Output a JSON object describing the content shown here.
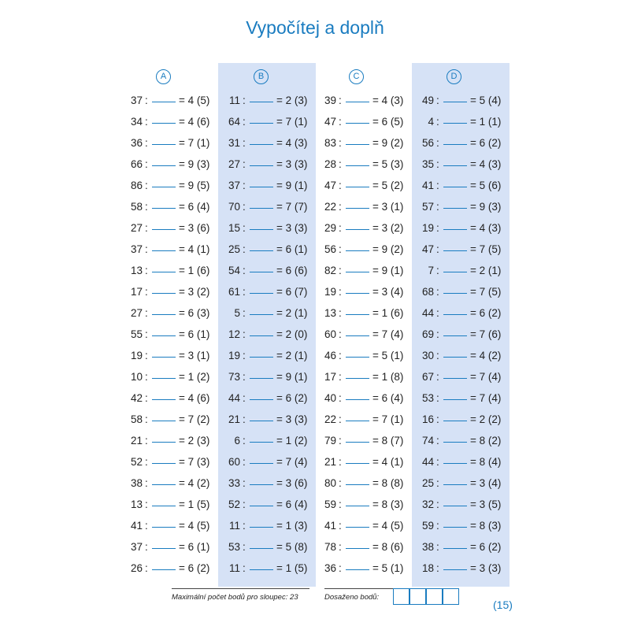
{
  "title": "Vypočítej a doplň",
  "columns": [
    {
      "label": "A",
      "rows": [
        {
          "dividend": "37",
          "rest": "= 4 (5)"
        },
        {
          "dividend": "34",
          "rest": "= 4 (6)"
        },
        {
          "dividend": "36",
          "rest": "= 7 (1)"
        },
        {
          "dividend": "66",
          "rest": "= 9 (3)"
        },
        {
          "dividend": "86",
          "rest": "= 9 (5)"
        },
        {
          "dividend": "58",
          "rest": "= 6 (4)"
        },
        {
          "dividend": "27",
          "rest": "= 3 (6)"
        },
        {
          "dividend": "37",
          "rest": "= 4 (1)"
        },
        {
          "dividend": "13",
          "rest": "= 1 (6)"
        },
        {
          "dividend": "17",
          "rest": "= 3 (2)"
        },
        {
          "dividend": "27",
          "rest": "= 6 (3)"
        },
        {
          "dividend": "55",
          "rest": "= 6 (1)"
        },
        {
          "dividend": "19",
          "rest": "= 3 (1)"
        },
        {
          "dividend": "10",
          "rest": "= 1 (2)"
        },
        {
          "dividend": "42",
          "rest": "= 4 (6)"
        },
        {
          "dividend": "58",
          "rest": "= 7 (2)"
        },
        {
          "dividend": "21",
          "rest": "= 2 (3)"
        },
        {
          "dividend": "52",
          "rest": "= 7 (3)"
        },
        {
          "dividend": "38",
          "rest": "= 4 (2)"
        },
        {
          "dividend": "13",
          "rest": "= 1 (5)"
        },
        {
          "dividend": "41",
          "rest": "= 4 (5)"
        },
        {
          "dividend": "37",
          "rest": "= 6 (1)"
        },
        {
          "dividend": "26",
          "rest": "= 6 (2)"
        }
      ]
    },
    {
      "label": "B",
      "rows": [
        {
          "dividend": "11",
          "rest": "= 2 (3)"
        },
        {
          "dividend": "64",
          "rest": "= 7 (1)"
        },
        {
          "dividend": "31",
          "rest": "= 4 (3)"
        },
        {
          "dividend": "27",
          "rest": "= 3 (3)"
        },
        {
          "dividend": "37",
          "rest": "= 9 (1)"
        },
        {
          "dividend": "70",
          "rest": "= 7 (7)"
        },
        {
          "dividend": "15",
          "rest": "= 3 (3)"
        },
        {
          "dividend": "25",
          "rest": "= 6 (1)"
        },
        {
          "dividend": "54",
          "rest": "= 6 (6)"
        },
        {
          "dividend": "61",
          "rest": "= 6 (7)"
        },
        {
          "dividend": "5",
          "rest": "= 2 (1)"
        },
        {
          "dividend": "12",
          "rest": "= 2 (0)"
        },
        {
          "dividend": "19",
          "rest": "= 2 (1)"
        },
        {
          "dividend": "73",
          "rest": "= 9 (1)"
        },
        {
          "dividend": "44",
          "rest": "= 6 (2)"
        },
        {
          "dividend": "21",
          "rest": "= 3 (3)"
        },
        {
          "dividend": "6",
          "rest": "= 1 (2)"
        },
        {
          "dividend": "60",
          "rest": "= 7 (4)"
        },
        {
          "dividend": "33",
          "rest": "= 3 (6)"
        },
        {
          "dividend": "52",
          "rest": "= 6 (4)"
        },
        {
          "dividend": "11",
          "rest": "= 1 (3)"
        },
        {
          "dividend": "53",
          "rest": "= 5 (8)"
        },
        {
          "dividend": "11",
          "rest": "= 1 (5)"
        }
      ]
    },
    {
      "label": "C",
      "rows": [
        {
          "dividend": "39",
          "rest": "= 4 (3)"
        },
        {
          "dividend": "47",
          "rest": "= 6 (5)"
        },
        {
          "dividend": "83",
          "rest": "= 9 (2)"
        },
        {
          "dividend": "28",
          "rest": "= 5 (3)"
        },
        {
          "dividend": "47",
          "rest": "= 5 (2)"
        },
        {
          "dividend": "22",
          "rest": "= 3 (1)"
        },
        {
          "dividend": "29",
          "rest": "= 3 (2)"
        },
        {
          "dividend": "56",
          "rest": "= 9 (2)"
        },
        {
          "dividend": "82",
          "rest": "= 9 (1)"
        },
        {
          "dividend": "19",
          "rest": "= 3 (4)"
        },
        {
          "dividend": "13",
          "rest": "= 1 (6)"
        },
        {
          "dividend": "60",
          "rest": "= 7 (4)"
        },
        {
          "dividend": "46",
          "rest": "= 5 (1)"
        },
        {
          "dividend": "17",
          "rest": "= 1 (8)"
        },
        {
          "dividend": "40",
          "rest": "= 6 (4)"
        },
        {
          "dividend": "22",
          "rest": "= 7 (1)"
        },
        {
          "dividend": "79",
          "rest": "= 8 (7)"
        },
        {
          "dividend": "21",
          "rest": "= 4 (1)"
        },
        {
          "dividend": "80",
          "rest": "= 8 (8)"
        },
        {
          "dividend": "59",
          "rest": "= 8 (3)"
        },
        {
          "dividend": "41",
          "rest": "= 4 (5)"
        },
        {
          "dividend": "78",
          "rest": "= 8 (6)"
        },
        {
          "dividend": "36",
          "rest": "= 5 (1)"
        }
      ]
    },
    {
      "label": "D",
      "rows": [
        {
          "dividend": "49",
          "rest": "= 5 (4)"
        },
        {
          "dividend": "4",
          "rest": "= 1 (1)"
        },
        {
          "dividend": "56",
          "rest": "= 6 (2)"
        },
        {
          "dividend": "35",
          "rest": "= 4 (3)"
        },
        {
          "dividend": "41",
          "rest": "= 5 (6)"
        },
        {
          "dividend": "57",
          "rest": "= 9 (3)"
        },
        {
          "dividend": "19",
          "rest": "= 4 (3)"
        },
        {
          "dividend": "47",
          "rest": "= 7 (5)"
        },
        {
          "dividend": "7",
          "rest": "= 2 (1)"
        },
        {
          "dividend": "68",
          "rest": "= 7 (5)"
        },
        {
          "dividend": "44",
          "rest": "= 6 (2)"
        },
        {
          "dividend": "69",
          "rest": "= 7 (6)"
        },
        {
          "dividend": "30",
          "rest": "= 4 (2)"
        },
        {
          "dividend": "67",
          "rest": "= 7 (4)"
        },
        {
          "dividend": "53",
          "rest": "= 7 (4)"
        },
        {
          "dividend": "16",
          "rest": "= 2 (2)"
        },
        {
          "dividend": "74",
          "rest": "= 8 (2)"
        },
        {
          "dividend": "44",
          "rest": "= 8 (4)"
        },
        {
          "dividend": "25",
          "rest": "= 3 (4)"
        },
        {
          "dividend": "32",
          "rest": "= 3 (5)"
        },
        {
          "dividend": "59",
          "rest": "= 8 (3)"
        },
        {
          "dividend": "38",
          "rest": "= 6 (2)"
        },
        {
          "dividend": "18",
          "rest": "= 3 (3)"
        }
      ]
    }
  ],
  "footer": {
    "max_points": "Maximální počet bodů pro sloupec: 23",
    "achieved": "Dosaženo bodů:",
    "page_number": "(15)"
  },
  "colors": {
    "accent": "#1a7cc0",
    "column_shading": "#d6e2f6"
  }
}
